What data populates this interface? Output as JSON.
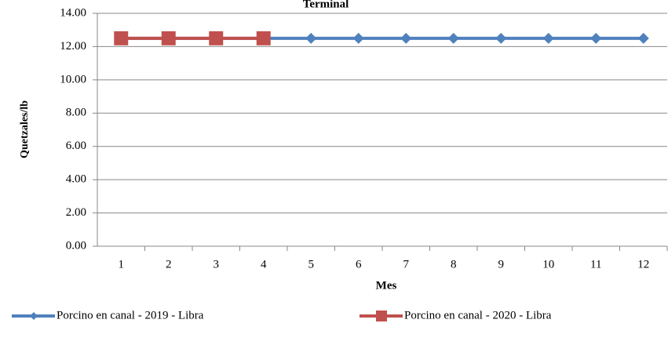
{
  "chart_data": {
    "type": "line",
    "title": "Terminal",
    "x_label": "Mes",
    "y_label": "Quetzales/lb",
    "categories": [
      "1",
      "2",
      "3",
      "4",
      "5",
      "6",
      "7",
      "8",
      "9",
      "10",
      "11",
      "12"
    ],
    "series": [
      {
        "name": "Porcino en canal - 2019 - Libra",
        "color": "#4f81bd",
        "marker": "diamond",
        "values": [
          12.5,
          12.5,
          12.5,
          12.5,
          12.5,
          12.5,
          12.5,
          12.5,
          12.5,
          12.5,
          12.5,
          12.5
        ]
      },
      {
        "name": "Porcino en canal - 2020 - Libra",
        "color": "#c0504d",
        "marker": "square",
        "values": [
          12.5,
          12.5,
          12.5,
          12.5,
          null,
          null,
          null,
          null,
          null,
          null,
          null,
          null
        ]
      }
    ],
    "ylim": [
      0,
      14
    ],
    "yticks": [
      {
        "value": 0,
        "label": "0.00"
      },
      {
        "value": 2,
        "label": "2.00"
      },
      {
        "value": 4,
        "label": "4.00"
      },
      {
        "value": 6,
        "label": "6.00"
      },
      {
        "value": 8,
        "label": "8.00"
      },
      {
        "value": 10,
        "label": "10.00"
      },
      {
        "value": 12,
        "label": "12.00"
      },
      {
        "value": 14,
        "label": "14.00"
      }
    ],
    "grid": true,
    "legend": "bottom"
  }
}
